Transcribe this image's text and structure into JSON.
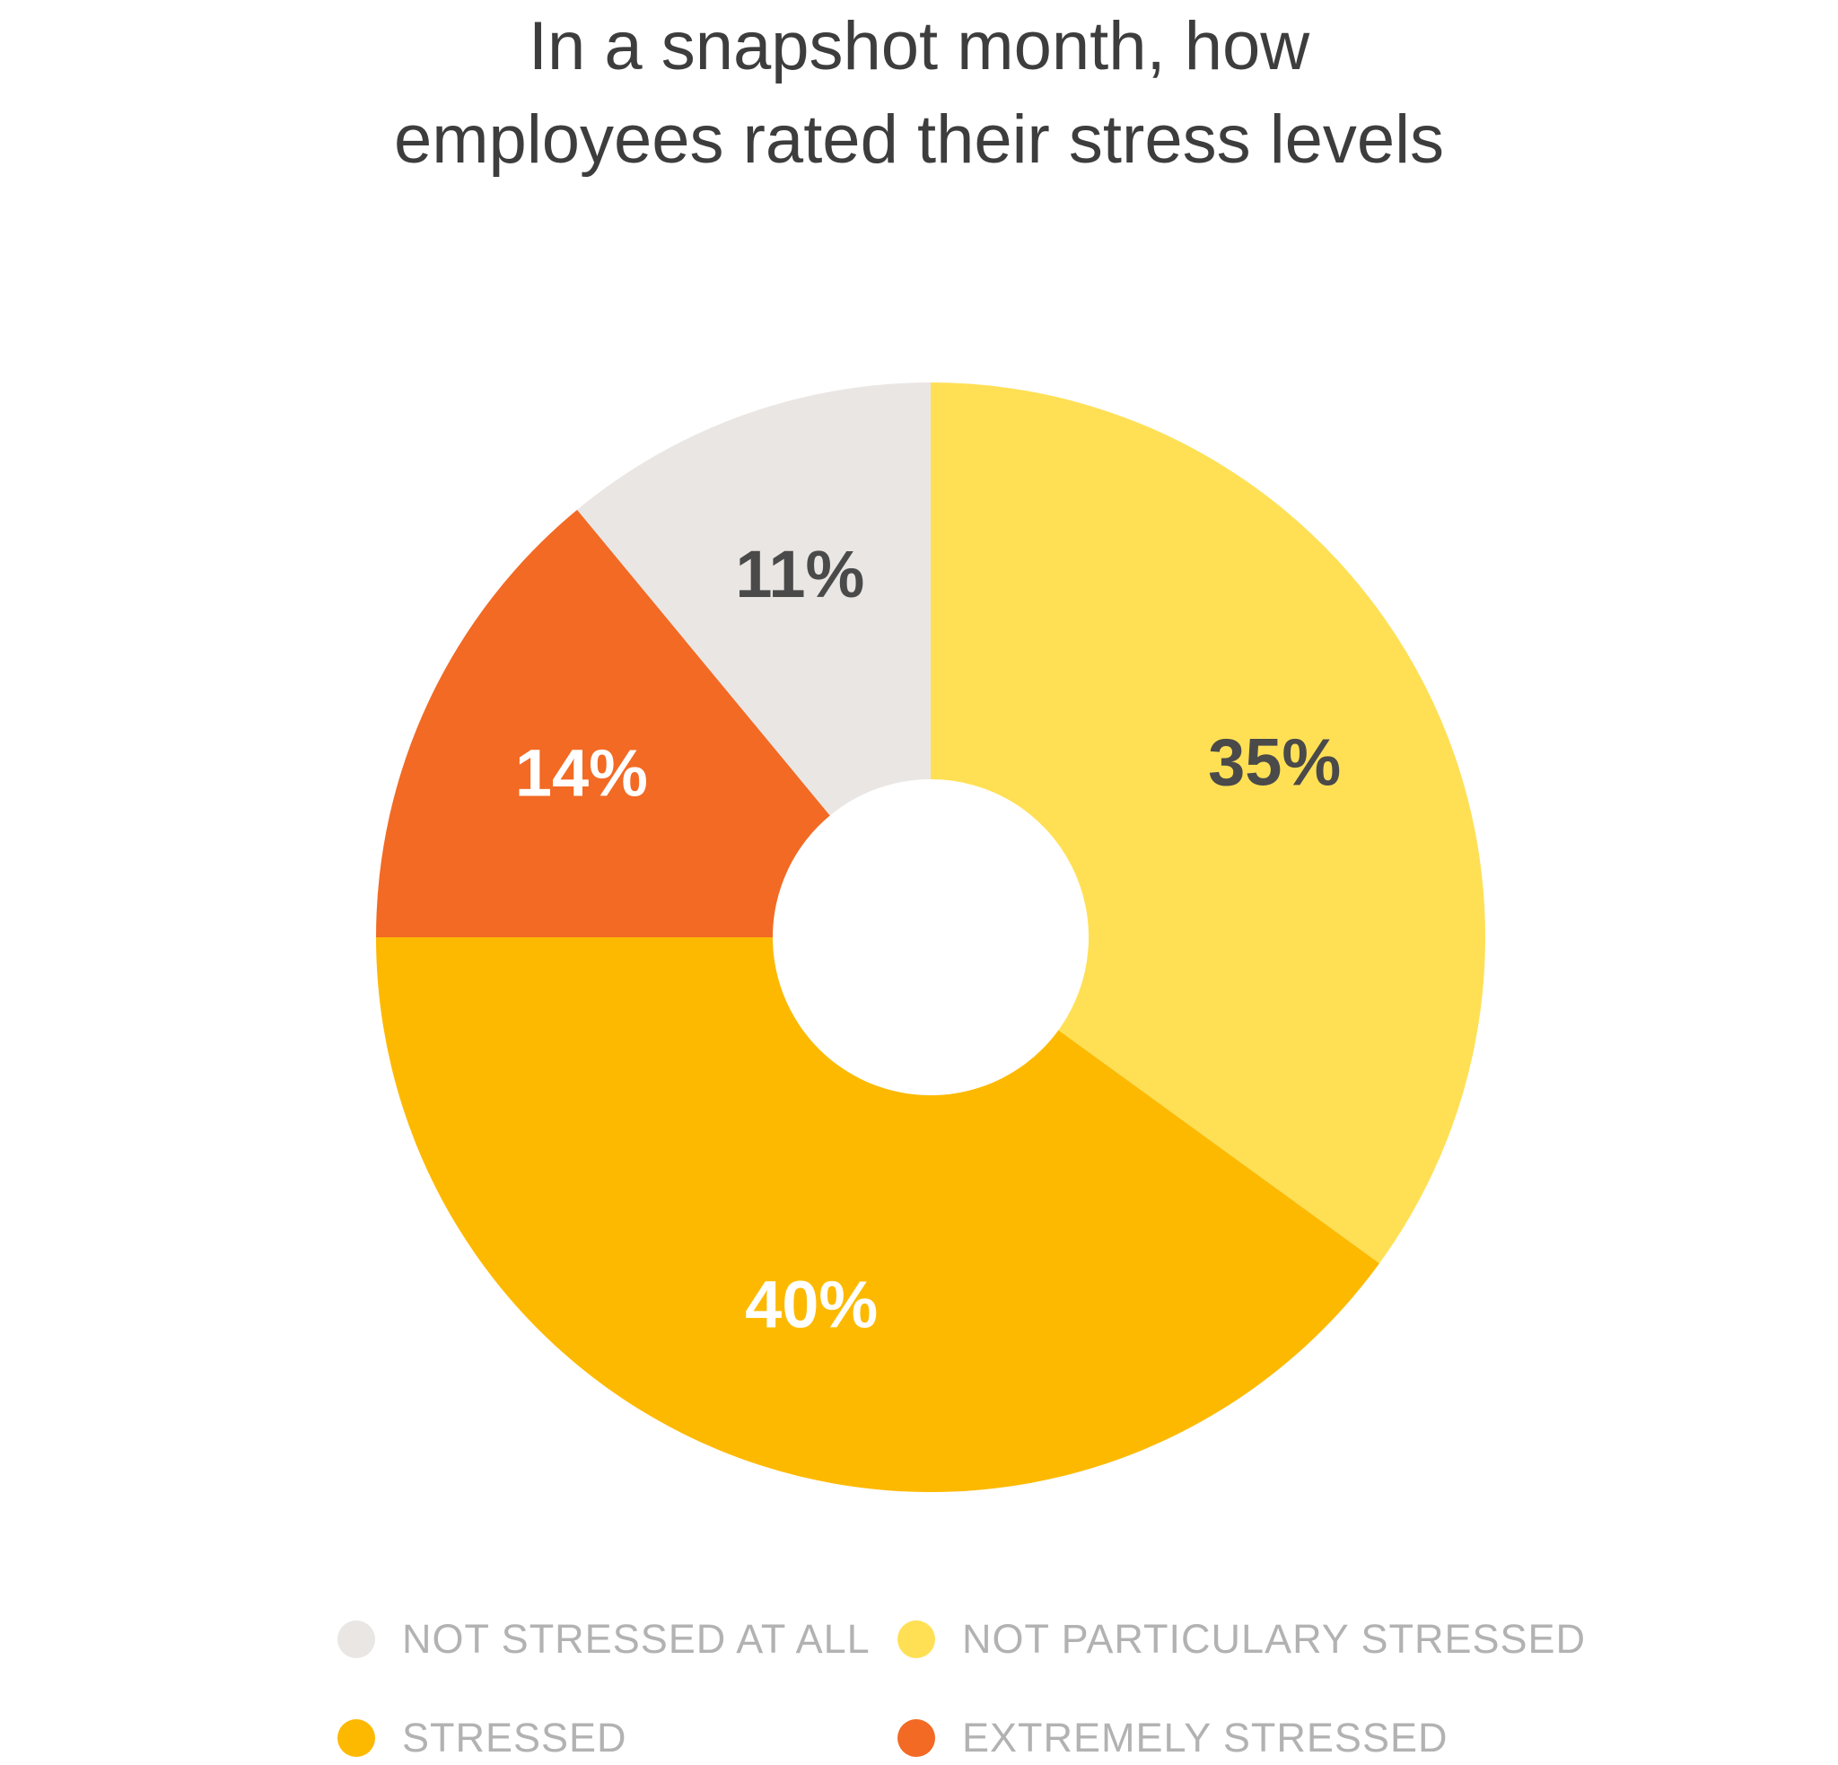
{
  "chart_data": {
    "type": "pie",
    "title_lines": [
      "In a snapshot month, how",
      "employees rated their stress levels"
    ],
    "slices": [
      {
        "label": "NOT PARTICULARY STRESSED",
        "value": 35,
        "display": "35%",
        "color": "#FFE055",
        "text_color": "#4a4a4a"
      },
      {
        "label": "STRESSED",
        "value": 40,
        "display": "40%",
        "color": "#FDB900",
        "text_color": "#ffffff"
      },
      {
        "label": "EXTREMELY STRESSED",
        "value": 14,
        "display": "14%",
        "color": "#F26A24",
        "text_color": "#ffffff"
      },
      {
        "label": "NOT STRESSED AT ALL",
        "value": 11,
        "display": "11%",
        "color": "#EAE6E3",
        "text_color": "#4a4a4a"
      }
    ],
    "legend": [
      {
        "label": "NOT STRESSED AT ALL",
        "color": "#EAE6E3"
      },
      {
        "label": "NOT PARTICULARY STRESSED",
        "color": "#FFE055"
      },
      {
        "label": "STRESSED",
        "color": "#FDB900"
      },
      {
        "label": "EXTREMELY STRESSED",
        "color": "#F26A24"
      }
    ],
    "donut": true,
    "legend_position": "bottom"
  }
}
